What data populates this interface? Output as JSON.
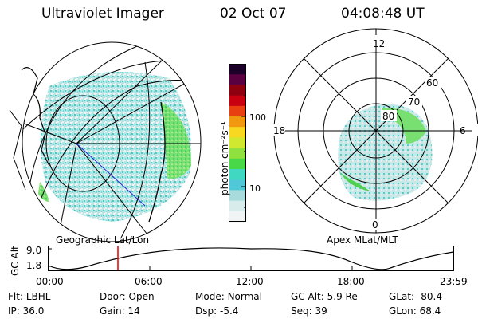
{
  "header": {
    "title": "Ultraviolet Imager",
    "date": "02 Oct 07",
    "time": "04:08:48 UT"
  },
  "left_panel": {
    "caption": "Geographic Lat/Lon"
  },
  "colorbar": {
    "unit_label": "photon cm⁻²s⁻¹",
    "ticks": [
      "100",
      "10"
    ],
    "colors": [
      "#1a0028",
      "#5a0040",
      "#8e0010",
      "#c80010",
      "#e84010",
      "#f09810",
      "#f8d820",
      "#d0e830",
      "#90e040",
      "#48d848",
      "#40d8c0",
      "#50c8d8",
      "#a8dcdc",
      "#d8ecec",
      "#f0f4f4"
    ]
  },
  "right_panel": {
    "caption": "Apex MLat/MLT",
    "mlt_labels": [
      "12",
      "18",
      "6",
      "0"
    ],
    "mlat_labels": [
      "60",
      "70",
      "80"
    ]
  },
  "altitude_plot": {
    "ylabel": "GC Alt",
    "yticks": [
      "9.0",
      "1.8"
    ],
    "xticks": [
      "00:00",
      "06:00",
      "12:00",
      "18:00",
      "23:59"
    ],
    "current_marker": "04:08:48",
    "marker_color": "#e00000"
  },
  "info": {
    "row1": [
      {
        "label": "Flt:",
        "value": "LBHL"
      },
      {
        "label": "Door:",
        "value": "Open"
      },
      {
        "label": "Mode:",
        "value": "Normal"
      },
      {
        "label": "GC Alt:",
        "value": "5.9 Re"
      },
      {
        "label": "GLat:",
        "value": "-80.4"
      }
    ],
    "row2": [
      {
        "label": "IP:",
        "value": "36.0"
      },
      {
        "label": "Gain:",
        "value": "14"
      },
      {
        "label": "Dsp:",
        "value": "-5.4"
      },
      {
        "label": "Seq:",
        "value": "39"
      },
      {
        "label": "GLon:",
        "value": "68.4"
      }
    ]
  }
}
